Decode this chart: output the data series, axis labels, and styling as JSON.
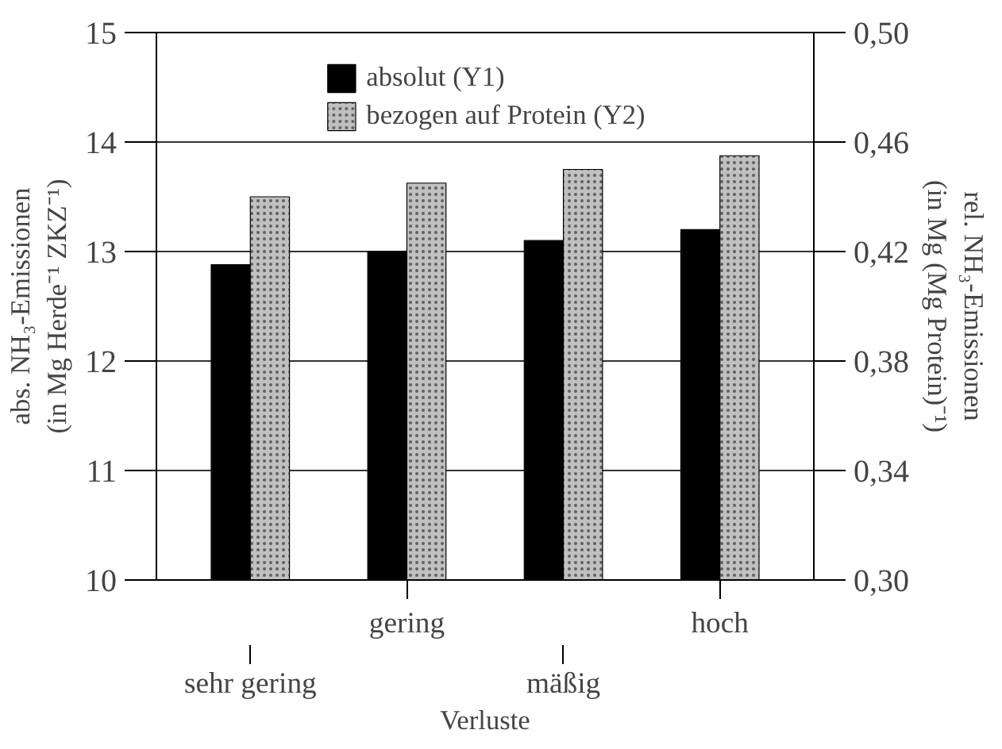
{
  "chart_data": {
    "type": "bar",
    "xlabel": "Verluste",
    "ylabel": "abs. NH₃-Emissionen\n(in Mg Herde⁻¹ ZKZ⁻¹)",
    "y2label": "rel. NH₃-Emissionen\n(in Mg (Mg Protein)⁻¹)",
    "categories": [
      "sehr gering",
      "gering",
      "mäßig",
      "hoch"
    ],
    "series": [
      {
        "name": "absolut (Y1)",
        "color": "#000000",
        "values": [
          12.88,
          13.0,
          13.1,
          13.2
        ]
      },
      {
        "name": "bezogen auf Protein (Y2)",
        "color": "#c0c0c0",
        "axis": "y2",
        "values": [
          0.44,
          0.445,
          0.45,
          0.455
        ]
      }
    ],
    "ylim": [
      10,
      15
    ],
    "yticks": [
      10,
      11,
      12,
      13,
      14,
      15
    ],
    "y2lim": [
      0.3,
      0.5
    ],
    "y2ticks": [
      {
        "value": 0.3,
        "label": "0,30"
      },
      {
        "value": 0.34,
        "label": "0,34"
      },
      {
        "value": 0.38,
        "label": "0,38"
      },
      {
        "value": 0.42,
        "label": "0,42"
      },
      {
        "value": 0.46,
        "label": "0,46"
      },
      {
        "value": 0.5,
        "label": "0,50"
      }
    ],
    "grid": "y",
    "legend": "top"
  }
}
